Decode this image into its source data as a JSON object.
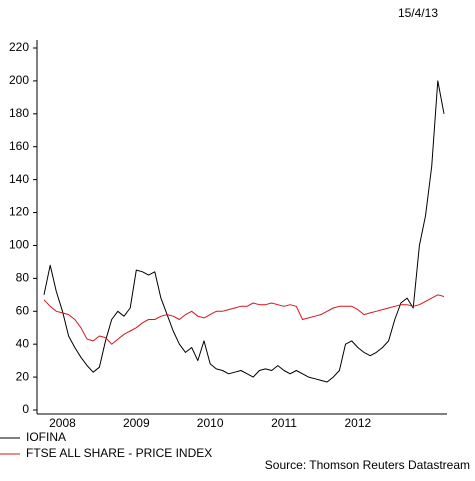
{
  "chart_data": {
    "type": "line",
    "date_label": "15/4/13",
    "source": "Source: Thomson Reuters Datastream",
    "categories": [
      null,
      null,
      null,
      "2008",
      null,
      null,
      null,
      null,
      null,
      null,
      null,
      null,
      null,
      null,
      null,
      "2009",
      null,
      null,
      null,
      null,
      null,
      null,
      null,
      null,
      null,
      null,
      null,
      "2010",
      null,
      null,
      null,
      null,
      null,
      null,
      null,
      null,
      null,
      null,
      null,
      "2011",
      null,
      null,
      null,
      null,
      null,
      null,
      null,
      null,
      null,
      null,
      null,
      "2012",
      null,
      null,
      null,
      null,
      null,
      null,
      null,
      null,
      null,
      null,
      null,
      null,
      null,
      null
    ],
    "series": [
      {
        "name": "IOFINA",
        "color": "#000000",
        "values": [
          70,
          88,
          72,
          60,
          45,
          38,
          32,
          27,
          23,
          26,
          42,
          55,
          60,
          57,
          62,
          85,
          84,
          82,
          84,
          68,
          58,
          48,
          40,
          35,
          38,
          30,
          42,
          28,
          25,
          24,
          22,
          23,
          24,
          22,
          20,
          24,
          25,
          24,
          27,
          24,
          22,
          24,
          22,
          20,
          19,
          18,
          17,
          20,
          24,
          40,
          42,
          38,
          35,
          33,
          35,
          38,
          42,
          55,
          65,
          68,
          62,
          100,
          118,
          148,
          200,
          180
        ]
      },
      {
        "name": "FTSE ALL SHARE - PRICE INDEX",
        "color": "#d8141c",
        "values": [
          67,
          63,
          60,
          59,
          58,
          55,
          50,
          43,
          42,
          45,
          44,
          40,
          43,
          46,
          48,
          50,
          53,
          55,
          55,
          57,
          58,
          57,
          55,
          58,
          60,
          57,
          56,
          58,
          60,
          60,
          61,
          62,
          63,
          63,
          65,
          64,
          64,
          65,
          64,
          63,
          64,
          63,
          55,
          56,
          57,
          58,
          60,
          62,
          63,
          63,
          63,
          61,
          58,
          59,
          60,
          61,
          62,
          63,
          64,
          64,
          63,
          64,
          66,
          68,
          70,
          69
        ]
      }
    ],
    "ylim": [
      0,
      220
    ],
    "yticks": [
      0,
      20,
      40,
      60,
      80,
      100,
      120,
      140,
      160,
      180,
      200,
      220
    ],
    "grid": false,
    "legend": "bottom-left"
  }
}
